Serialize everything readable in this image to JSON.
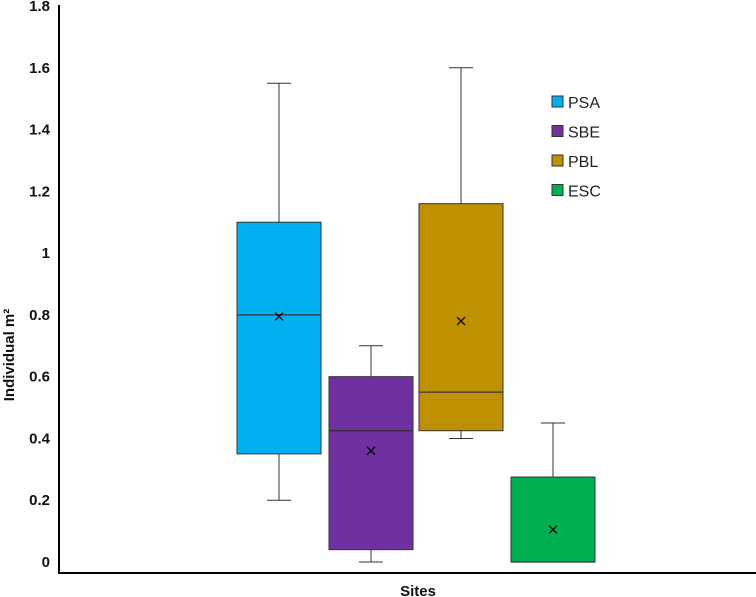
{
  "chart_data": {
    "type": "box",
    "title": "",
    "xlabel": "Sites",
    "ylabel": "Individual m²",
    "ylim": [
      0,
      1.8
    ],
    "yticks": [
      {
        "value": 0,
        "label": "0"
      },
      {
        "value": 0.2,
        "label": "0.2"
      },
      {
        "value": 0.4,
        "label": "0.4"
      },
      {
        "value": 0.6,
        "label": "0.6"
      },
      {
        "value": 0.8,
        "label": "0.8"
      },
      {
        "value": 1.0,
        "label": "1"
      },
      {
        "value": 1.2,
        "label": "1.2"
      },
      {
        "value": 1.4,
        "label": "1.4"
      },
      {
        "value": 1.6,
        "label": "1.6"
      },
      {
        "value": 1.8,
        "label": "1.8"
      }
    ],
    "grid": false,
    "legend_position": "top-right",
    "series": [
      {
        "name": "PSA",
        "color": "#00B0F0",
        "min": 0.2,
        "q1": 0.35,
        "median": 0.8,
        "q3": 1.1,
        "max": 1.55,
        "mean": 0.795
      },
      {
        "name": "SBE",
        "color": "#7030A0",
        "min": 0.0,
        "q1": 0.04,
        "median": 0.425,
        "q3": 0.6,
        "max": 0.7,
        "mean": 0.36
      },
      {
        "name": "PBL",
        "color": "#BF9000",
        "min": 0.4,
        "q1": 0.425,
        "median": 0.55,
        "q3": 1.16,
        "max": 1.6,
        "mean": 0.78
      },
      {
        "name": "ESC",
        "color": "#00B050",
        "min": 0.0,
        "q1": 0.0,
        "median": 0.0,
        "q3": 0.275,
        "max": 0.45,
        "mean": 0.105
      }
    ]
  }
}
